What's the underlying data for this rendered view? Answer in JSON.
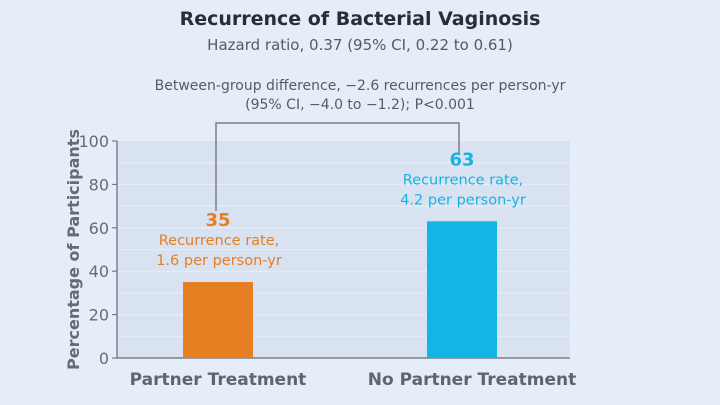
{
  "chart_data": {
    "type": "bar",
    "title": "Recurrence of Bacterial Vaginosis",
    "subtitle": "Hazard ratio, 0.37 (95% CI, 0.22 to 0.61)",
    "annotation": [
      "Between-group difference, −2.6 recurrences per person-yr",
      "(95% CI, −4.0 to −1.2); P<0.001"
    ],
    "categories": [
      "Partner Treatment",
      "No Partner Treatment"
    ],
    "values": [
      35,
      63
    ],
    "value_labels": [
      "35",
      "63"
    ],
    "bar_notes": [
      [
        "Recurrence rate,",
        "1.6 per person-yr"
      ],
      [
        "Recurrence rate,",
        "4.2 per person-yr"
      ]
    ],
    "colors": [
      "#e67e22",
      "#12b5e5"
    ],
    "ylabel": "Percentage of Participants",
    "xlabel": "",
    "ylim": [
      0,
      100
    ],
    "yticks": [
      0,
      20,
      40,
      60,
      80,
      100
    ],
    "grid": true
  }
}
